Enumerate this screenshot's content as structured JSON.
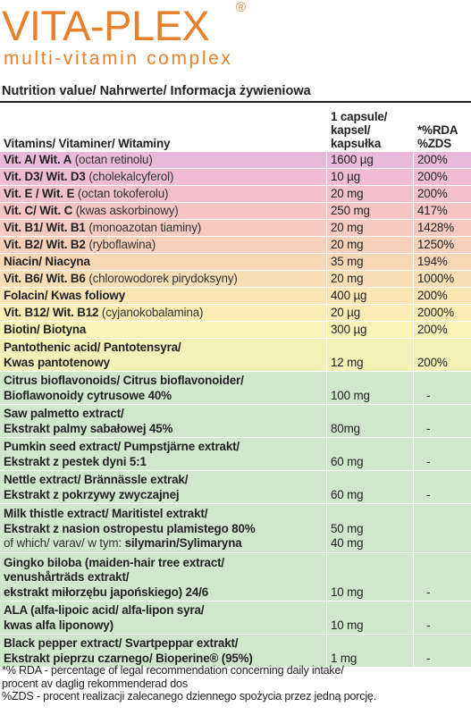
{
  "header": {
    "brand": "VITA-PLEX",
    "registered": "®",
    "subtitle": "multi-vitamin complex",
    "title": "Nutrition value/ Nahrwerte/ Informacja żywieniowa"
  },
  "table": {
    "columns": [
      [
        "Vitamins/ Vitaminer/ Witaminy"
      ],
      [
        "1 capsule/",
        "kapsel/",
        "kapsułka"
      ],
      [
        "*%RDA",
        "%ZDS"
      ]
    ],
    "rows": [
      {
        "lines": [
          [
            {
              "bold": "Vit. A/ Wit. A"
            },
            {
              "normal": "(octan retinolu)"
            }
          ]
        ],
        "amount": [
          "1600 µg"
        ],
        "rda": "200%"
      },
      {
        "lines": [
          [
            {
              "bold": "Vit. D3/ Wit. D3"
            },
            {
              "normal": "(cholekalcyferol)"
            }
          ]
        ],
        "amount": [
          "10 µg"
        ],
        "rda": "200%"
      },
      {
        "lines": [
          [
            {
              "bold": "Vit. E / Wit. E"
            },
            {
              "normal": "(octan tokoferolu)"
            }
          ]
        ],
        "amount": [
          "20 mg"
        ],
        "rda": "200%"
      },
      {
        "lines": [
          [
            {
              "bold": "Vit. C/ Wit. C"
            },
            {
              "normal": "(kwas askorbinowy)"
            }
          ]
        ],
        "amount": [
          "250 mg"
        ],
        "rda": "417%"
      },
      {
        "lines": [
          [
            {
              "bold": "Vit. B1/ Wit. B1"
            },
            {
              "normal": "(monoazotan tiaminy)"
            }
          ]
        ],
        "amount": [
          "20 mg"
        ],
        "rda": "1428%"
      },
      {
        "lines": [
          [
            {
              "bold": "Vit. B2/ Wit. B2"
            },
            {
              "normal": "(ryboflawina)"
            }
          ]
        ],
        "amount": [
          "20 mg"
        ],
        "rda": "1250%"
      },
      {
        "lines": [
          [
            {
              "bold": "Niacin/ Niacyna"
            }
          ]
        ],
        "amount": [
          "35 mg"
        ],
        "rda": "194%"
      },
      {
        "lines": [
          [
            {
              "bold": "Vit. B6/ Wit. B6"
            },
            {
              "normal": "(chlorowodorek pirydoksyny)"
            }
          ]
        ],
        "amount": [
          "20 mg"
        ],
        "rda": "1000%"
      },
      {
        "lines": [
          [
            {
              "bold": "Folacin/ Kwas foliowy"
            }
          ]
        ],
        "amount": [
          "400 µg"
        ],
        "rda": "200%"
      },
      {
        "lines": [
          [
            {
              "bold": "Vit. B12/ Wit. B12"
            },
            {
              "normal": "(cyjanokobalamina)"
            }
          ]
        ],
        "amount": [
          "20 µg"
        ],
        "rda": "2000%"
      },
      {
        "lines": [
          [
            {
              "bold": "Biotin/ Biotyna"
            }
          ]
        ],
        "amount": [
          "300 µg"
        ],
        "rda": "200%"
      },
      {
        "lines": [
          [
            {
              "bold": "Pantothenic acid/ Pantotensyra/"
            }
          ],
          [
            {
              "bold": "Kwas pantotenowy"
            }
          ]
        ],
        "amount": [
          "12 mg"
        ],
        "rda": "200%"
      },
      {
        "lines": [
          [
            {
              "bold": "Citrus bioflavonoids/ Citrus bioflavonoider/"
            }
          ],
          [
            {
              "bold": "Bioflawonoidy cytrusowe 40%"
            }
          ]
        ],
        "amount": [
          "100 mg"
        ],
        "rda": "-"
      },
      {
        "lines": [
          [
            {
              "bold": "Saw palmetto extract/"
            }
          ],
          [
            {
              "bold": "Ekstrakt palmy sabałowej 45%"
            }
          ]
        ],
        "amount": [
          "80mg"
        ],
        "rda": "-"
      },
      {
        "lines": [
          [
            {
              "bold": "Pumkin seed extract/ Pumpstjärne extrakt/"
            }
          ],
          [
            {
              "bold": "Ekstrakt z pestek dyni 5:1"
            }
          ]
        ],
        "amount": [
          "60 mg"
        ],
        "rda": "-"
      },
      {
        "lines": [
          [
            {
              "bold": "Nettle extract/ Brännässle extrak/"
            }
          ],
          [
            {
              "bold": "Ekstrakt z pokrzywy zwyczajnej"
            }
          ]
        ],
        "amount": [
          "60 mg"
        ],
        "rda": "-"
      },
      {
        "lines": [
          [
            {
              "bold": "Milk thistle extract/ Maritistel extrakt/"
            }
          ],
          [
            {
              "bold": "Ekstrakt z nasion ostropestu plamistego 80%"
            }
          ],
          [
            {
              "normal": "of which/ varav/ w tym:"
            },
            {
              "bold": "silymarin/Sylimaryna"
            }
          ]
        ],
        "amount": [
          "50 mg",
          "40 mg"
        ]
      },
      {
        "lines": [
          [
            {
              "bold": "Gingko biloba (maiden-hair tree extract/"
            }
          ],
          [
            {
              "bold": "venushårträds extrakt/"
            }
          ],
          [
            {
              "bold": "ekstrakt miłorzębu japońskiego) 24/6"
            }
          ]
        ],
        "amount": [
          "10 mg"
        ],
        "rda": "-"
      },
      {
        "lines": [
          [
            {
              "bold": "ALA (alfa-lipoic acid/ alfa-lipon syra/"
            }
          ],
          [
            {
              "bold": "kwas alfa liponowy)"
            }
          ]
        ],
        "amount": [
          "10 mg"
        ],
        "rda": "-"
      },
      {
        "lines": [
          [
            {
              "bold": "Black pepper extract/ Svartpeppar extrakt/"
            }
          ],
          [
            {
              "bold": "Ekstrakt pieprzu czarnego/ Bioperine® (95%)"
            }
          ]
        ],
        "amount": [
          "1 mg"
        ],
        "rda": "-"
      }
    ]
  },
  "footnotes": [
    "*% RDA - percentage of legal recommendation concerning daily intake/",
    "procent av daglig rekommenderad dos",
    "%ZDS - procent realizacji zalecanego dziennego spożycia przez jedną porcję."
  ]
}
